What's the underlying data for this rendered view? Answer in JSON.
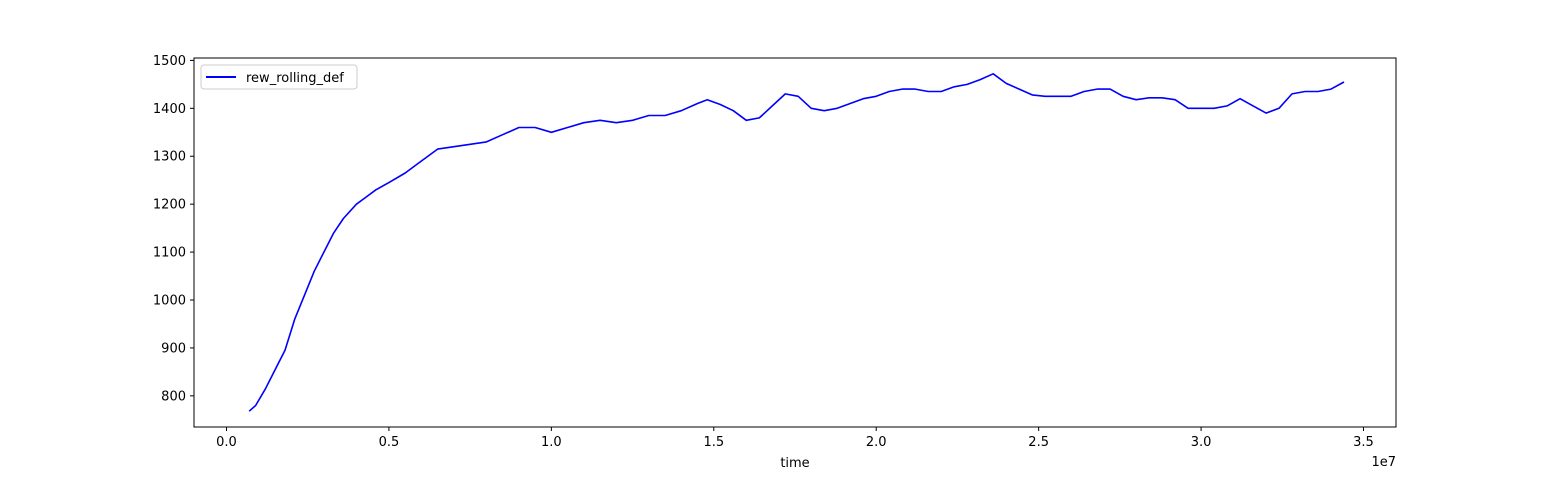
{
  "chart_data": {
    "type": "line",
    "title": "",
    "xlabel": "time",
    "ylabel": "",
    "x_offset_label": "1e7",
    "xlim": [
      -0.1,
      3.6
    ],
    "ylim": [
      735,
      1505
    ],
    "xticks": [
      0.0,
      0.5,
      1.0,
      1.5,
      2.0,
      2.5,
      3.0,
      3.5
    ],
    "xtick_labels": [
      "0.0",
      "0.5",
      "1.0",
      "1.5",
      "2.0",
      "2.5",
      "3.0",
      "3.5"
    ],
    "yticks": [
      800,
      900,
      1000,
      1100,
      1200,
      1300,
      1400,
      1500
    ],
    "ytick_labels": [
      "800",
      "900",
      "1000",
      "1100",
      "1200",
      "1300",
      "1400",
      "1500"
    ],
    "grid": false,
    "legend_position": "top-left",
    "series": [
      {
        "name": "rew_rolling_def",
        "color": "#0000ff",
        "x": [
          0.07,
          0.09,
          0.12,
          0.15,
          0.18,
          0.21,
          0.24,
          0.27,
          0.3,
          0.33,
          0.36,
          0.4,
          0.43,
          0.46,
          0.5,
          0.55,
          0.6,
          0.65,
          0.7,
          0.75,
          0.8,
          0.85,
          0.9,
          0.95,
          1.0,
          1.05,
          1.1,
          1.15,
          1.2,
          1.25,
          1.3,
          1.35,
          1.4,
          1.45,
          1.48,
          1.52,
          1.56,
          1.6,
          1.64,
          1.68,
          1.72,
          1.76,
          1.8,
          1.84,
          1.88,
          1.92,
          1.96,
          2.0,
          2.04,
          2.08,
          2.12,
          2.16,
          2.2,
          2.24,
          2.28,
          2.32,
          2.36,
          2.4,
          2.44,
          2.48,
          2.52,
          2.56,
          2.6,
          2.64,
          2.68,
          2.72,
          2.76,
          2.8,
          2.84,
          2.88,
          2.92,
          2.96,
          3.0,
          3.04,
          3.08,
          3.12,
          3.16,
          3.2,
          3.24,
          3.28,
          3.32,
          3.36,
          3.4,
          3.44
        ],
        "values": [
          768,
          780,
          815,
          855,
          895,
          960,
          1010,
          1060,
          1100,
          1140,
          1170,
          1200,
          1215,
          1230,
          1245,
          1265,
          1290,
          1315,
          1320,
          1325,
          1330,
          1345,
          1360,
          1360,
          1350,
          1360,
          1370,
          1375,
          1370,
          1375,
          1385,
          1385,
          1395,
          1410,
          1418,
          1408,
          1395,
          1375,
          1380,
          1405,
          1430,
          1425,
          1400,
          1395,
          1400,
          1410,
          1420,
          1425,
          1435,
          1440,
          1440,
          1435,
          1435,
          1445,
          1450,
          1460,
          1472,
          1452,
          1440,
          1428,
          1425,
          1425,
          1425,
          1435,
          1440,
          1440,
          1425,
          1418,
          1422,
          1422,
          1418,
          1400,
          1400,
          1400,
          1405,
          1420,
          1405,
          1390,
          1400,
          1430,
          1435,
          1435,
          1440,
          1455
        ]
      }
    ]
  }
}
